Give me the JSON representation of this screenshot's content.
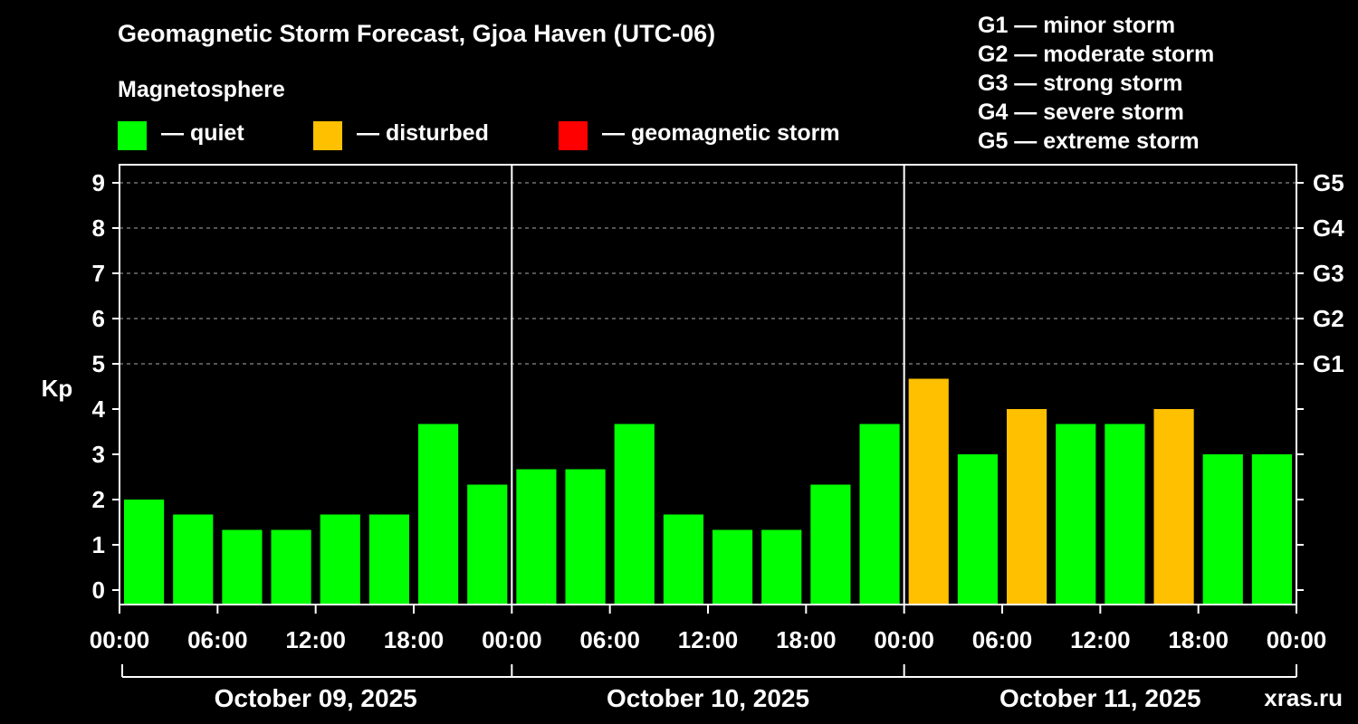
{
  "chart_data": {
    "type": "bar",
    "title": "Geomagnetic Storm Forecast, Gjoa Haven (UTC-06)",
    "legend_title": "Magnetosphere",
    "legend": [
      {
        "label": "— quiet",
        "color": "#00ff00"
      },
      {
        "label": "— disturbed",
        "color": "#ffc000"
      },
      {
        "label": "— geomagnetic storm",
        "color": "#ff0000"
      }
    ],
    "storm_scale": [
      "G1 — minor storm",
      "G2 — moderate storm",
      "G3 — strong storm",
      "G4 — severe storm",
      "G5 — extreme storm"
    ],
    "ylabel": "Kp",
    "ylim": [
      0,
      9
    ],
    "y_ticks": [
      "0",
      "1",
      "2",
      "3",
      "4",
      "5",
      "6",
      "7",
      "8",
      "9"
    ],
    "g_ticks": [
      {
        "kp": 5,
        "label": "G1"
      },
      {
        "kp": 6,
        "label": "G2"
      },
      {
        "kp": 7,
        "label": "G3"
      },
      {
        "kp": 8,
        "label": "G4"
      },
      {
        "kp": 9,
        "label": "G5"
      }
    ],
    "x_ticks": [
      "00:00",
      "06:00",
      "12:00",
      "18:00",
      "00:00",
      "06:00",
      "12:00",
      "18:00",
      "00:00",
      "06:00",
      "12:00",
      "18:00",
      "00:00"
    ],
    "days": [
      "October 09, 2025",
      "October 10, 2025",
      "October 11, 2025"
    ],
    "interval_hours": 3,
    "values": [
      2.0,
      1.67,
      1.33,
      1.33,
      1.67,
      1.67,
      3.67,
      2.33,
      2.67,
      2.67,
      3.67,
      1.67,
      1.33,
      1.33,
      2.33,
      3.67,
      4.67,
      3.0,
      4.0,
      3.67,
      3.67,
      4.0,
      3.0,
      3.0
    ],
    "status": [
      "quiet",
      "quiet",
      "quiet",
      "quiet",
      "quiet",
      "quiet",
      "quiet",
      "quiet",
      "quiet",
      "quiet",
      "quiet",
      "quiet",
      "quiet",
      "quiet",
      "quiet",
      "quiet",
      "disturbed",
      "quiet",
      "disturbed",
      "quiet",
      "quiet",
      "disturbed",
      "quiet",
      "quiet"
    ],
    "colors": {
      "quiet": "#00ff00",
      "disturbed": "#ffc000",
      "storm": "#ff0000"
    },
    "grid": true
  },
  "watermark": "xras.ru"
}
